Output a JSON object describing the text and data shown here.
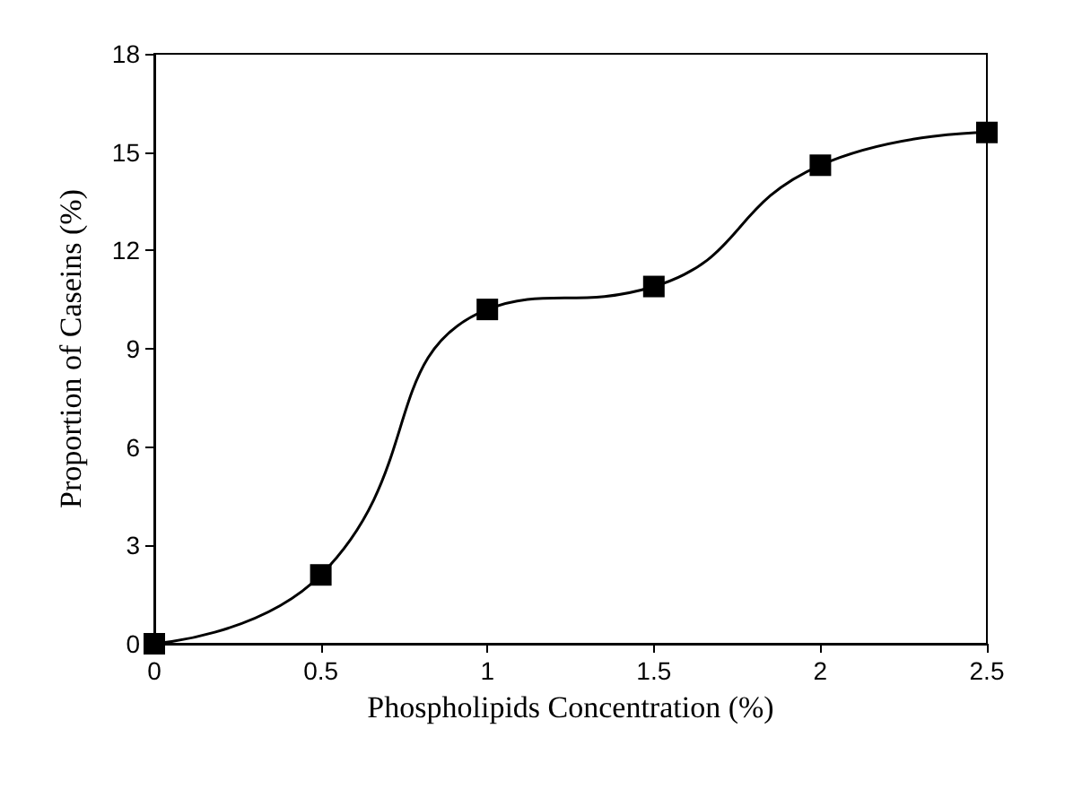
{
  "chart_data": {
    "type": "line",
    "xlabel": "Phospholipids Concentration (%)",
    "ylabel": "Proportion of Caseins (%)",
    "x": [
      0,
      0.5,
      1,
      1.5,
      2,
      2.5
    ],
    "series": [
      {
        "color": "#000000",
        "values": [
          0,
          2.1,
          10.2,
          10.9,
          14.6,
          15.6
        ]
      }
    ],
    "xlim": [
      0,
      2.5
    ],
    "xticks": [
      0,
      0.5,
      1,
      1.5,
      2,
      2.5
    ],
    "ylim": [
      0,
      18
    ],
    "yticks": [
      0,
      3,
      6,
      9,
      12,
      15,
      18
    ],
    "grid": false,
    "marker": "square",
    "line_style": "solid"
  }
}
